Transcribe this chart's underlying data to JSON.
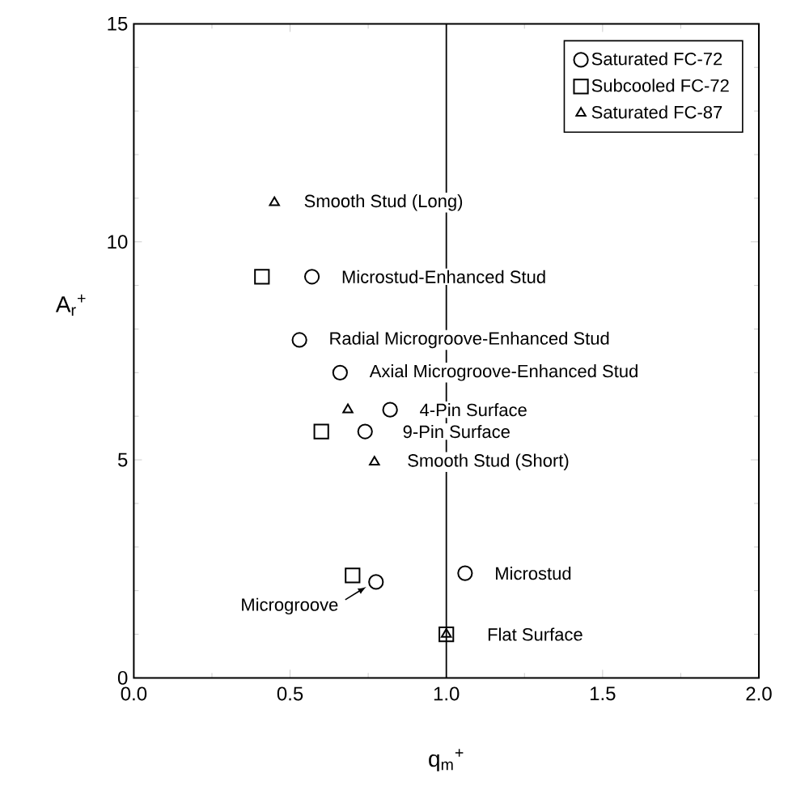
{
  "chart_data": {
    "type": "scatter",
    "xlabel": "q$_{m}$$^{+}$",
    "ylabel": "A$_{r}$$^{+}$",
    "xlim": [
      0,
      2
    ],
    "ylim": [
      0,
      15
    ],
    "xticks": [
      {
        "value": 0,
        "label": "0.0"
      },
      {
        "value": 0.5,
        "label": "0.5"
      },
      {
        "value": 1,
        "label": "1.0"
      },
      {
        "value": 1.5,
        "label": "1.5"
      },
      {
        "value": 2,
        "label": "2.0"
      }
    ],
    "yticks": [
      0,
      5,
      10,
      15
    ],
    "grid": false,
    "legend": "top right",
    "series": [
      {
        "name": "Saturated FC-72",
        "color": "#000000",
        "marker": "circle",
        "x": [
          0.57,
          0.53,
          0.66,
          0.82,
          0.74,
          0.775,
          1.06
        ],
        "values": [
          9.2,
          7.75,
          7.0,
          6.15,
          5.65,
          2.2,
          2.4
        ]
      },
      {
        "name": "Subcooled FC-72",
        "color": "#000000",
        "marker": "square",
        "x": [
          0.41,
          0.6,
          0.7,
          1.0
        ],
        "values": [
          9.2,
          5.65,
          2.35,
          1.0
        ]
      },
      {
        "name": "Saturated FC-87",
        "color": "#000000",
        "marker": "triangle",
        "x": [
          0.45,
          0.685,
          0.77,
          1.0
        ],
        "values": [
          10.9,
          6.15,
          4.95,
          1.0
        ]
      }
    ],
    "ref_lines": [
      {
        "axis": "x",
        "value": 1,
        "color": "#000000",
        "line_style": "solid"
      }
    ],
    "annotations": [
      {
        "text": "Smooth Stud (Long)",
        "x": 0.45,
        "y": 10.9
      },
      {
        "text": "Microstud-Enhanced Stud",
        "x": 0.57,
        "y": 9.2
      },
      {
        "text": "Radial Microgroove-Enhanced Stud",
        "x": 0.53,
        "y": 7.75
      },
      {
        "text": "Axial Microgroove-Enhanced Stud",
        "x": 0.66,
        "y": 7.0
      },
      {
        "text": "4-Pin Surface",
        "x": 0.82,
        "y": 6.15
      },
      {
        "text": "9-Pin Surface",
        "x": 0.74,
        "y": 5.65
      },
      {
        "text": "Smooth Stud (Short)",
        "x": 0.77,
        "y": 4.95
      },
      {
        "text": "Microstud",
        "x": 1.06,
        "y": 2.4
      },
      {
        "text": "Microgroove",
        "x": 0.775,
        "y": 2.2
      },
      {
        "text": "Flat Surface",
        "x": 1.0,
        "y": 1.0
      }
    ]
  }
}
